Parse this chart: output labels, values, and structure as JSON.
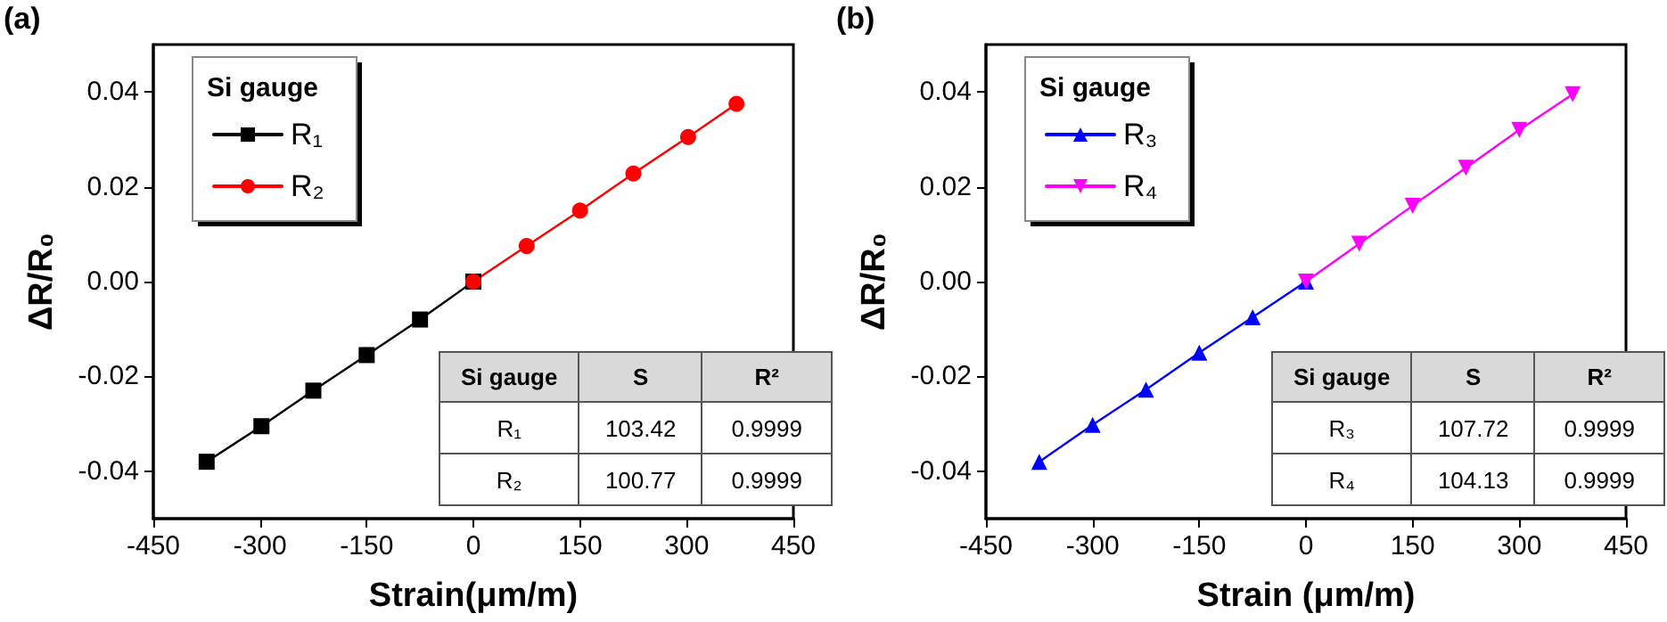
{
  "chart_data": [
    {
      "type": "line",
      "title": "(a)",
      "xlabel": "Strain(μm/m)",
      "ylabel": "ΔR/R₀",
      "legend_title": "Si gauge",
      "legend": "top left",
      "grid": false,
      "line_style": "solid",
      "xlim": [
        -450,
        450
      ],
      "xticks": [
        -450,
        -300,
        -150,
        0,
        150,
        300,
        450
      ],
      "ylim": [
        -0.05,
        0.05
      ],
      "yticks": [
        {
          "value": -0.04,
          "label": "-0.04"
        },
        {
          "value": -0.02,
          "label": "-0.02"
        },
        {
          "value": 0,
          "label": "0.00"
        },
        {
          "value": 0.02,
          "label": "0.02"
        },
        {
          "value": 0.04,
          "label": "0.04"
        }
      ],
      "series": [
        {
          "name": "R₁",
          "color": "#000000",
          "marker": "square",
          "x": [
            -375,
            -298,
            -225,
            -150,
            -75,
            0
          ],
          "values": [
            -0.038,
            -0.0305,
            -0.023,
            -0.0155,
            -0.008,
            0
          ]
        },
        {
          "name": "R₂",
          "color": "#ff0000",
          "marker": "circle",
          "x": [
            0,
            75,
            150,
            225,
            302,
            370
          ],
          "values": [
            0,
            0.0075,
            0.015,
            0.0228,
            0.0305,
            0.0375
          ]
        }
      ],
      "annotations": [
        "Si gauge",
        "S",
        "R²",
        "R₁",
        "103.42",
        "0.9999",
        "R₂",
        "100.77",
        "0.9999"
      ]
    },
    {
      "type": "line",
      "title": "(b)",
      "xlabel": "Strain (μm/m)",
      "ylabel": "ΔR/R₀",
      "legend_title": "Si gauge",
      "legend": "top left",
      "grid": false,
      "line_style": "solid",
      "xlim": [
        -450,
        450
      ],
      "xticks": [
        -450,
        -300,
        -150,
        0,
        150,
        300,
        450
      ],
      "ylim": [
        -0.05,
        0.05
      ],
      "yticks": [
        {
          "value": -0.04,
          "label": "-0.04"
        },
        {
          "value": -0.02,
          "label": "-0.02"
        },
        {
          "value": 0,
          "label": "0.00"
        },
        {
          "value": 0.02,
          "label": "0.02"
        },
        {
          "value": 0.04,
          "label": "0.04"
        }
      ],
      "series": [
        {
          "name": "R₃",
          "color": "#0000ff",
          "marker": "triangle",
          "x": [
            -375,
            -300,
            -225,
            -150,
            -75,
            0
          ],
          "values": [
            -0.038,
            -0.0302,
            -0.0228,
            -0.015,
            -0.0075,
            0
          ]
        },
        {
          "name": "R₄",
          "color": "#ff00ff",
          "marker": "triangle-down",
          "x": [
            0,
            75,
            150,
            225,
            300,
            375
          ],
          "values": [
            0,
            0.008,
            0.016,
            0.024,
            0.032,
            0.0395
          ]
        }
      ],
      "annotations": [
        "Si gauge",
        "S",
        "R²",
        "R₃",
        "107.72",
        "0.9999",
        "R₄",
        "104.13",
        "0.9999"
      ]
    }
  ]
}
